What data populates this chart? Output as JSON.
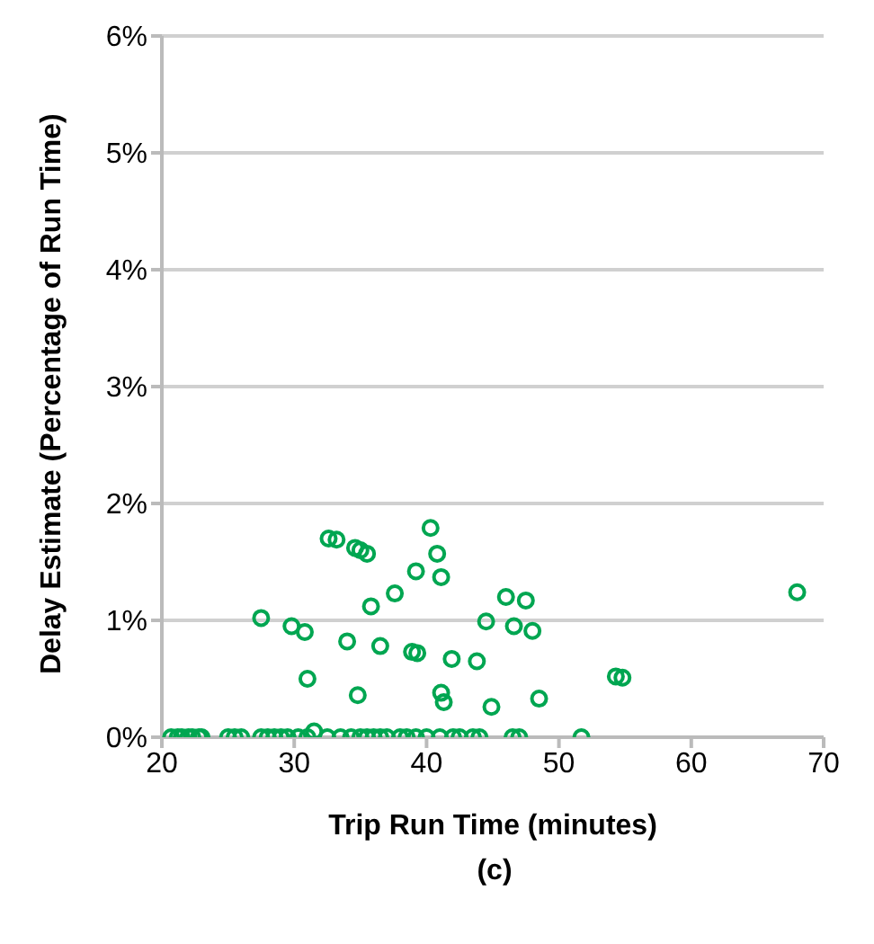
{
  "chart_data": {
    "type": "scatter",
    "xlabel": "Trip Run Time (minutes)",
    "ylabel": "Delay Estimate (Percentage of Run Time)",
    "annotations": [
      "(c)"
    ],
    "x": [
      27.5,
      29.8,
      30.8,
      31,
      32.6,
      33.2,
      34,
      34.6,
      35,
      34.8,
      35.5,
      35.8,
      36.5,
      37.6,
      38.9,
      39.3,
      39.2,
      40.3,
      40.8,
      41.1,
      41.1,
      41.3,
      41.9,
      43.8,
      44.5,
      44.9,
      46,
      46.6,
      47.5,
      48,
      48.5,
      54.3,
      54.8,
      68,
      31.5,
      20.7,
      21.2,
      21.5,
      22,
      22.3,
      22.8,
      23,
      25,
      25.5,
      26,
      27.5,
      28,
      28.5,
      29,
      29.5,
      30.3,
      31,
      32.5,
      33.5,
      34.3,
      35,
      35.5,
      36,
      36.5,
      37,
      38,
      38.5,
      39.2,
      40,
      41,
      42,
      42.5,
      43.5,
      44,
      46.5,
      47,
      51.7
    ],
    "values": [
      1.02,
      0.95,
      0.9,
      0.5,
      1.7,
      1.69,
      0.82,
      1.62,
      1.6,
      0.36,
      1.57,
      1.12,
      0.78,
      1.23,
      0.73,
      0.72,
      1.42,
      1.79,
      1.57,
      1.37,
      0.38,
      0.3,
      0.67,
      0.65,
      0.99,
      0.26,
      1.2,
      0.95,
      1.17,
      0.91,
      0.33,
      0.52,
      0.51,
      1.24,
      0.05,
      0,
      0,
      0,
      0,
      0,
      0,
      0,
      0,
      0,
      0,
      0,
      0,
      0,
      0,
      0,
      0,
      0,
      0,
      0,
      0,
      0,
      0,
      0,
      0,
      0,
      0,
      0,
      0,
      0,
      0,
      0,
      0,
      0,
      0,
      0,
      0,
      0
    ],
    "color": "#00a651",
    "marker": "circle",
    "grid": "y",
    "xlim": [
      20,
      70
    ],
    "xticks": [
      20,
      30,
      40,
      50,
      60,
      70
    ],
    "ylim": [
      0,
      6
    ],
    "yticks": [
      {
        "value": 0,
        "label": "0%"
      },
      {
        "value": 1,
        "label": "1%"
      },
      {
        "value": 2,
        "label": "2%"
      },
      {
        "value": 3,
        "label": "3%"
      },
      {
        "value": 4,
        "label": "4%"
      },
      {
        "value": 5,
        "label": "5%"
      },
      {
        "value": 6,
        "label": "6%"
      }
    ]
  }
}
